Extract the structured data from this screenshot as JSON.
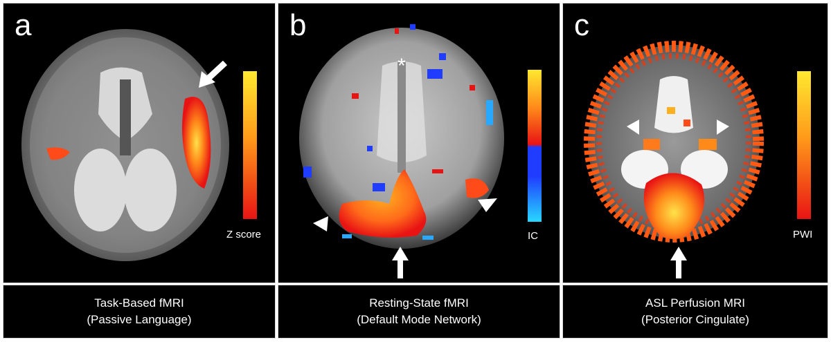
{
  "panels": [
    {
      "letter": "a",
      "scale_label": "Z score",
      "caption_line1": "Task-Based fMRI",
      "caption_line2": "(Passive Language)"
    },
    {
      "letter": "b",
      "scale_label": "IC",
      "caption_line1": "Resting-State fMRI",
      "caption_line2": "(Default Mode Network)"
    },
    {
      "letter": "c",
      "scale_label": "PWI",
      "caption_line1": "ASL Perfusion MRI",
      "caption_line2": "(Posterior Cingulate)"
    }
  ],
  "colors": {
    "background": "#000000",
    "activation_hot": "#ffd23a",
    "activation_mid": "#ff7a1a",
    "activation_low": "#e81414",
    "negative_low": "#1f3cff",
    "negative_high": "#28d8ff",
    "annotation": "#ffffff"
  },
  "markers": {
    "b_asterisk": "*"
  }
}
